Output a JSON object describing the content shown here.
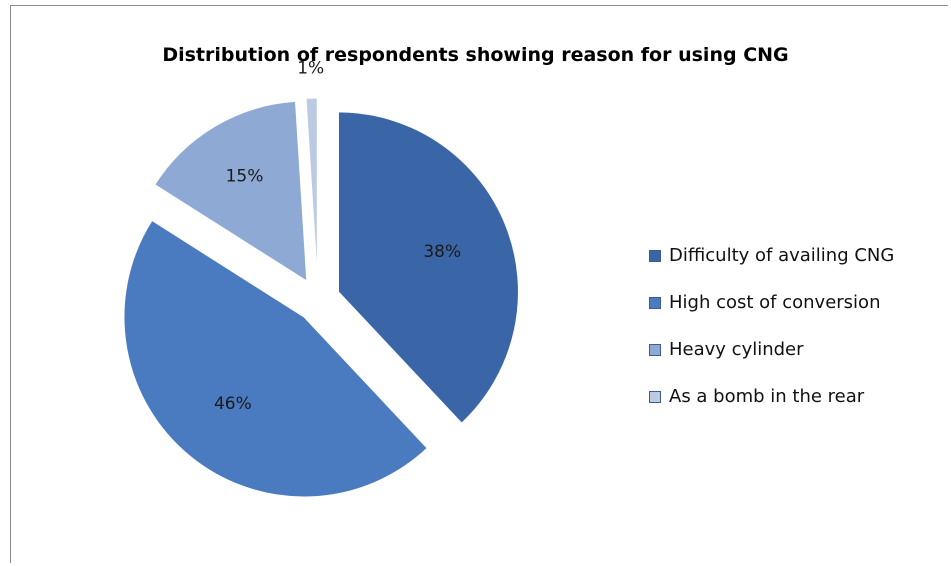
{
  "chart_data": {
    "type": "pie",
    "title": "Distribution of respondents showing reason for using CNG",
    "slices": [
      {
        "label": "Difficulty of availing CNG",
        "value": 38,
        "display": "38%",
        "color": "#3a66a8"
      },
      {
        "label": "High cost of conversion",
        "value": 46,
        "display": "46%",
        "color": "#4a7bc0"
      },
      {
        "label": "Heavy cylinder",
        "value": 15,
        "display": "15%",
        "color": "#8ea9d3"
      },
      {
        "label": "As a bomb in the rear",
        "value": 1,
        "display": "1%",
        "color": "#bccbe3"
      }
    ],
    "legend_position": "right",
    "exploded": true
  }
}
